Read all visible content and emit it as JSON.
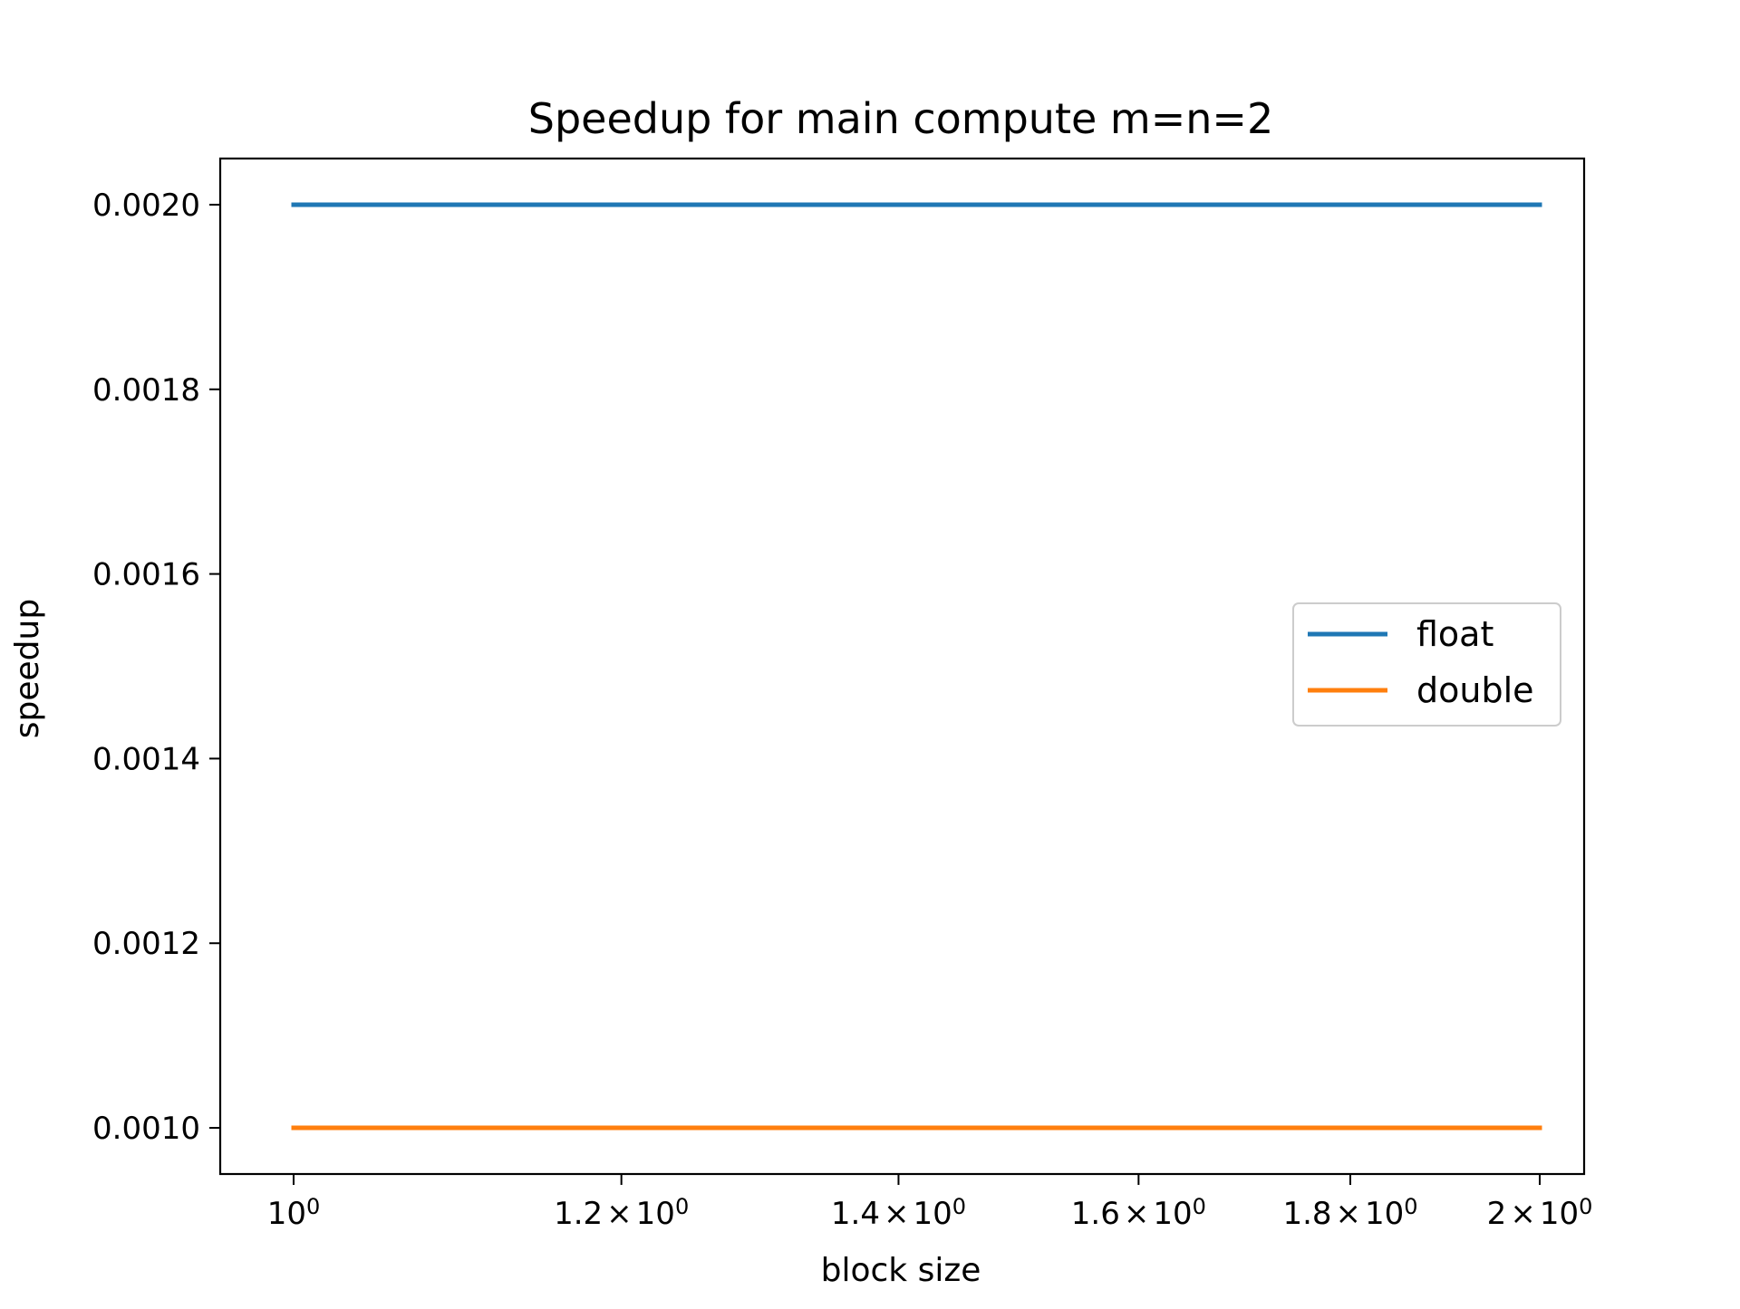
{
  "chart_data": {
    "type": "line",
    "title": "Speedup for main compute m=n=2",
    "xlabel": "block size",
    "ylabel": "speedup",
    "x_scale": "log",
    "xlim": [
      0.96,
      2.05
    ],
    "ylim": [
      0.00095,
      0.00205
    ],
    "x": [
      1,
      2
    ],
    "series": [
      {
        "name": "float",
        "color": "#1f77b4",
        "values": [
          0.002,
          0.002
        ]
      },
      {
        "name": "double",
        "color": "#ff7f0e",
        "values": [
          0.001,
          0.001
        ]
      }
    ],
    "x_ticks": [
      {
        "value": 1.0,
        "base": "10",
        "exp": "0",
        "mult": ""
      },
      {
        "value": 1.2,
        "base": "10",
        "exp": "0",
        "mult": "1.2"
      },
      {
        "value": 1.4,
        "base": "10",
        "exp": "0",
        "mult": "1.4"
      },
      {
        "value": 1.6,
        "base": "10",
        "exp": "0",
        "mult": "1.6"
      },
      {
        "value": 1.8,
        "base": "10",
        "exp": "0",
        "mult": "1.8"
      },
      {
        "value": 2.0,
        "base": "10",
        "exp": "0",
        "mult": "2"
      }
    ],
    "y_ticks": [
      {
        "value": 0.001,
        "label": "0.0010"
      },
      {
        "value": 0.0012,
        "label": "0.0012"
      },
      {
        "value": 0.0014,
        "label": "0.0014"
      },
      {
        "value": 0.0016,
        "label": "0.0016"
      },
      {
        "value": 0.0018,
        "label": "0.0018"
      },
      {
        "value": 0.002,
        "label": "0.0020"
      }
    ],
    "legend_position": "center-right",
    "grid": false
  }
}
